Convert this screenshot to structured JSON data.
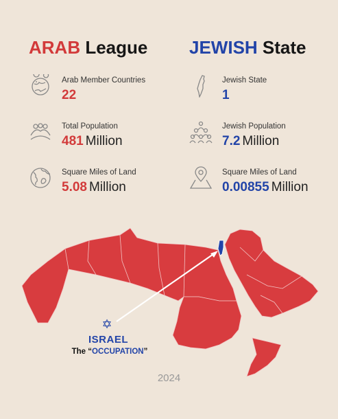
{
  "arab": {
    "heading_highlight": "ARAB",
    "heading_rest": " League",
    "stats": [
      {
        "label": "Arab Member Countries",
        "value": "22",
        "unit": "",
        "icon": "globe-pin-icon"
      },
      {
        "label": "Total Population",
        "value": "481",
        "unit": "Million",
        "icon": "crowd-icon"
      },
      {
        "label": "Square Miles of Land",
        "value": "5.08",
        "unit": "Million",
        "icon": "globe-icon"
      }
    ]
  },
  "jewish": {
    "heading_highlight": "JEWISH",
    "heading_rest": " State",
    "stats": [
      {
        "label": "Jewish State",
        "value": "1",
        "unit": "",
        "icon": "israel-outline-icon"
      },
      {
        "label": "Jewish Population",
        "value": "7.2",
        "unit": "Million",
        "icon": "people-group-icon"
      },
      {
        "label": "Square Miles of Land",
        "value": "0.00855",
        "unit": "Million",
        "icon": "map-pin-icon"
      }
    ]
  },
  "map": {
    "star_symbol": "✡",
    "israel_label": "ISRAEL",
    "occupation_prefix": "The “",
    "occupation_word": "OCCUPATION",
    "occupation_suffix": "”"
  },
  "year": "2024",
  "colors": {
    "arab_red": "#d23a3a",
    "jewish_blue": "#2244a8",
    "background": "#efe5d9"
  }
}
